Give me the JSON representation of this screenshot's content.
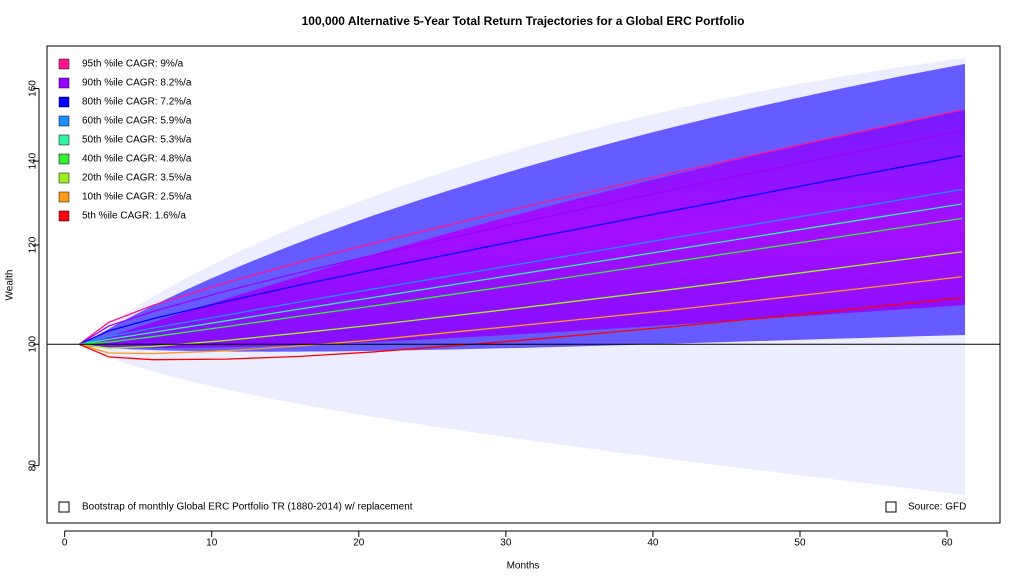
{
  "chart_data": {
    "type": "line",
    "title": "100,000 Alternative 5-Year Total Return Trajectories for a Global ERC Portfolio",
    "x_label": "Months",
    "y_label": "Wealth",
    "x": [
      1,
      3,
      6,
      11,
      16,
      21,
      31,
      41,
      51,
      61
    ],
    "series": [
      {
        "name": "95th %ile CAGR: 9%/a",
        "color": "#ff1493",
        "values": [
          100,
          104.1,
          107.4,
          112.0,
          116.3,
          120.4,
          128.5,
          136.7,
          145.1,
          153.8
        ]
      },
      {
        "name": "90th %ile CAGR: 8.2%/a",
        "color": "#9b00ff",
        "values": [
          100,
          103.4,
          106.2,
          110.3,
          114.1,
          117.8,
          125.1,
          132.6,
          140.2,
          148.1
        ]
      },
      {
        "name": "80th %ile CAGR: 7.2%/a",
        "color": "#0000ff",
        "values": [
          100,
          102.5,
          104.8,
          108.2,
          111.5,
          114.7,
          121.1,
          127.6,
          134.4,
          141.4
        ]
      },
      {
        "name": "60th %ile CAGR: 5.9%/a",
        "color": "#1e90ff",
        "values": [
          100,
          101.4,
          103.0,
          105.5,
          108.1,
          110.7,
          115.9,
          121.4,
          127.0,
          132.9
        ]
      },
      {
        "name": "50th %ile CAGR: 5.3%/a",
        "color": "#2ef5a0",
        "values": [
          100,
          100.9,
          102.2,
          104.4,
          106.7,
          109.0,
          113.8,
          118.8,
          124.0,
          129.4
        ]
      },
      {
        "name": "40th %ile CAGR: 4.8%/a",
        "color": "#33ee33",
        "values": [
          100,
          100.4,
          101.4,
          103.3,
          105.3,
          107.3,
          111.6,
          116.2,
          121.0,
          126.0
        ]
      },
      {
        "name": "20th %ile CAGR: 3.5%/a",
        "color": "#a0f020",
        "values": [
          100,
          99.3,
          99.6,
          100.7,
          102.1,
          103.6,
          106.9,
          110.5,
          114.4,
          118.5
        ]
      },
      {
        "name": "10th %ile CAGR: 2.5%/a",
        "color": "#ff9a1a",
        "values": [
          100,
          98.4,
          98.3,
          98.8,
          99.7,
          100.8,
          103.5,
          106.4,
          109.7,
          113.2
        ]
      },
      {
        "name": "5th %ile CAGR: 1.6%/a",
        "color": "#ff0000",
        "values": [
          100,
          97.7,
          97.2,
          97.3,
          97.8,
          98.6,
          100.7,
          103.2,
          105.9,
          108.9
        ]
      }
    ],
    "hline": 100,
    "xlim": [
      -1.2,
      63.6
    ],
    "xticks": [
      0,
      10,
      20,
      30,
      40,
      50,
      60
    ],
    "ylim": [
      72,
      173
    ],
    "yticks": [
      80,
      100,
      120,
      140,
      160
    ],
    "log_y": true,
    "legend": "top-left",
    "note_left": "Bootstrap of monthly Global ERC Portfolio TR (1880-2014) w/ replacement",
    "note_right": "Source: GFD"
  }
}
